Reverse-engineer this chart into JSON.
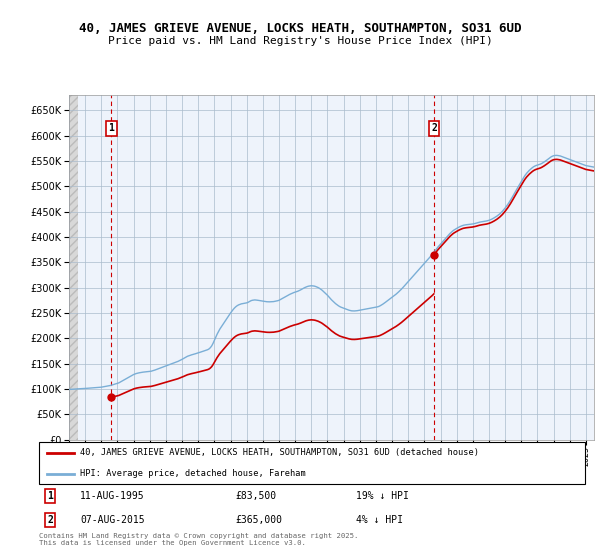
{
  "title_line1": "40, JAMES GRIEVE AVENUE, LOCKS HEATH, SOUTHAMPTON, SO31 6UD",
  "title_line2": "Price paid vs. HM Land Registry's House Price Index (HPI)",
  "ylim": [
    0,
    680000
  ],
  "yticks": [
    0,
    50000,
    100000,
    150000,
    200000,
    250000,
    300000,
    350000,
    400000,
    450000,
    500000,
    550000,
    600000,
    650000
  ],
  "purchase1": {
    "price": 83500,
    "x": 1995.61
  },
  "purchase2": {
    "price": 365000,
    "x": 2015.6
  },
  "legend_line1": "40, JAMES GRIEVE AVENUE, LOCKS HEATH, SOUTHAMPTON, SO31 6UD (detached house)",
  "legend_line2": "HPI: Average price, detached house, Fareham",
  "footnote": "Contains HM Land Registry data © Crown copyright and database right 2025.\nThis data is licensed under the Open Government Licence v3.0.",
  "line_color_red": "#cc0000",
  "line_color_blue": "#7aaed6",
  "xlim_start": 1993.0,
  "xlim_end": 2025.5,
  "hpi_data_monthly": {
    "start_year": 1993.0,
    "step": 0.08333,
    "values": [
      99000,
      99200,
      99500,
      99700,
      100000,
      100200,
      100300,
      100400,
      100500,
      100600,
      100700,
      100800,
      101000,
      101200,
      101400,
      101600,
      101800,
      102000,
      102200,
      102400,
      102600,
      102800,
      103000,
      103200,
      103500,
      104000,
      104500,
      105000,
      105500,
      106000,
      106500,
      107000,
      107800,
      108600,
      109400,
      110200,
      111000,
      112000,
      113500,
      115000,
      116500,
      118000,
      119500,
      121000,
      122500,
      124000,
      125500,
      127000,
      128500,
      129500,
      130500,
      131200,
      131800,
      132300,
      132800,
      133200,
      133500,
      133800,
      134000,
      134200,
      134500,
      135000,
      135800,
      136600,
      137500,
      138500,
      139500,
      140500,
      141500,
      142500,
      143500,
      144500,
      145500,
      146500,
      147500,
      148500,
      149500,
      150500,
      151500,
      152500,
      153500,
      154500,
      155800,
      157200,
      158500,
      160000,
      161500,
      163000,
      164500,
      165500,
      166500,
      167300,
      168000,
      168800,
      169600,
      170400,
      171200,
      172100,
      173000,
      173900,
      174800,
      175700,
      176600,
      177500,
      179000,
      181500,
      185000,
      190000,
      196000,
      202000,
      208000,
      213000,
      218000,
      222000,
      226000,
      230000,
      234000,
      238000,
      242000,
      246000,
      250000,
      253500,
      257000,
      260000,
      262500,
      264500,
      266000,
      267000,
      268000,
      268500,
      269000,
      269500,
      270000,
      271000,
      272500,
      274000,
      275000,
      275500,
      275800,
      275600,
      275200,
      274800,
      274400,
      274000,
      273500,
      273000,
      272500,
      272200,
      272000,
      272000,
      272100,
      272300,
      272500,
      273000,
      273500,
      274200,
      275000,
      276500,
      278000,
      279500,
      281000,
      282500,
      284000,
      285500,
      286800,
      288000,
      289200,
      290300,
      291200,
      292000,
      293000,
      294200,
      295500,
      297000,
      298600,
      300000,
      301200,
      302200,
      303000,
      303500,
      303800,
      303600,
      303200,
      302500,
      301500,
      300300,
      298800,
      297000,
      295000,
      292500,
      290000,
      287500,
      285000,
      282000,
      279000,
      276000,
      273500,
      271000,
      268500,
      266500,
      264500,
      262800,
      261500,
      260500,
      259500,
      258500,
      257500,
      256500,
      255500,
      254800,
      254200,
      254000,
      254000,
      254200,
      254500,
      255000,
      255500,
      256000,
      256500,
      257000,
      257500,
      258000,
      258500,
      259000,
      259500,
      260000,
      260500,
      261000,
      261500,
      262000,
      262800,
      264000,
      265500,
      267200,
      269000,
      271000,
      273000,
      275000,
      277000,
      279000,
      281000,
      283000,
      285000,
      287200,
      289500,
      292000,
      294500,
      297200,
      300000,
      303000,
      306000,
      309000,
      312000,
      315000,
      318000,
      321000,
      324000,
      327000,
      330000,
      333000,
      336000,
      339000,
      342000,
      345000,
      348000,
      351000,
      354000,
      357000,
      360000,
      363000,
      366000,
      369500,
      373000,
      376500,
      380000,
      383000,
      386000,
      389000,
      392000,
      395000,
      398000,
      401000,
      404000,
      407000,
      409500,
      411800,
      413800,
      415500,
      417000,
      418500,
      420000,
      421200,
      422300,
      423200,
      423800,
      424200,
      424500,
      424800,
      425100,
      425400,
      425800,
      426300,
      427000,
      427800,
      428600,
      429300,
      429900,
      430300,
      430700,
      431100,
      431600,
      432200,
      433000,
      434000,
      435200,
      436600,
      438100,
      439800,
      441500,
      443500,
      445700,
      448200,
      450900,
      454000,
      457300,
      460800,
      464500,
      468500,
      472800,
      477300,
      482000,
      486800,
      491500,
      496000,
      500500,
      505000,
      509500,
      514000,
      518500,
      522500,
      526000,
      529000,
      531800,
      534200,
      536500,
      538500,
      540000,
      541200,
      542000,
      542800,
      543800,
      545000,
      546500,
      548200,
      550000,
      552000,
      554000,
      556000,
      558000,
      559500,
      560500,
      561000,
      561200,
      561000,
      560500,
      560000,
      559000,
      558000,
      557000,
      556000,
      555000,
      554000,
      553000,
      552000,
      551000,
      550000,
      549000,
      548000,
      547000,
      546000,
      545000,
      544000,
      543000,
      542000,
      541000,
      540500,
      540000,
      539500,
      539000,
      538500,
      538000,
      537500,
      537000,
      537500,
      538000,
      538800,
      539800,
      540800,
      542000,
      543000,
      544000,
      544800,
      545400,
      545800,
      546000,
      546200,
      546500,
      547000,
      547800,
      548800,
      550000,
      551200,
      552500,
      553700,
      554800,
      555600,
      556200,
      556600,
      556800,
      557000,
      557200,
      557500,
      558000,
      558500,
      559000,
      559500,
      560000,
      560000
    ]
  }
}
